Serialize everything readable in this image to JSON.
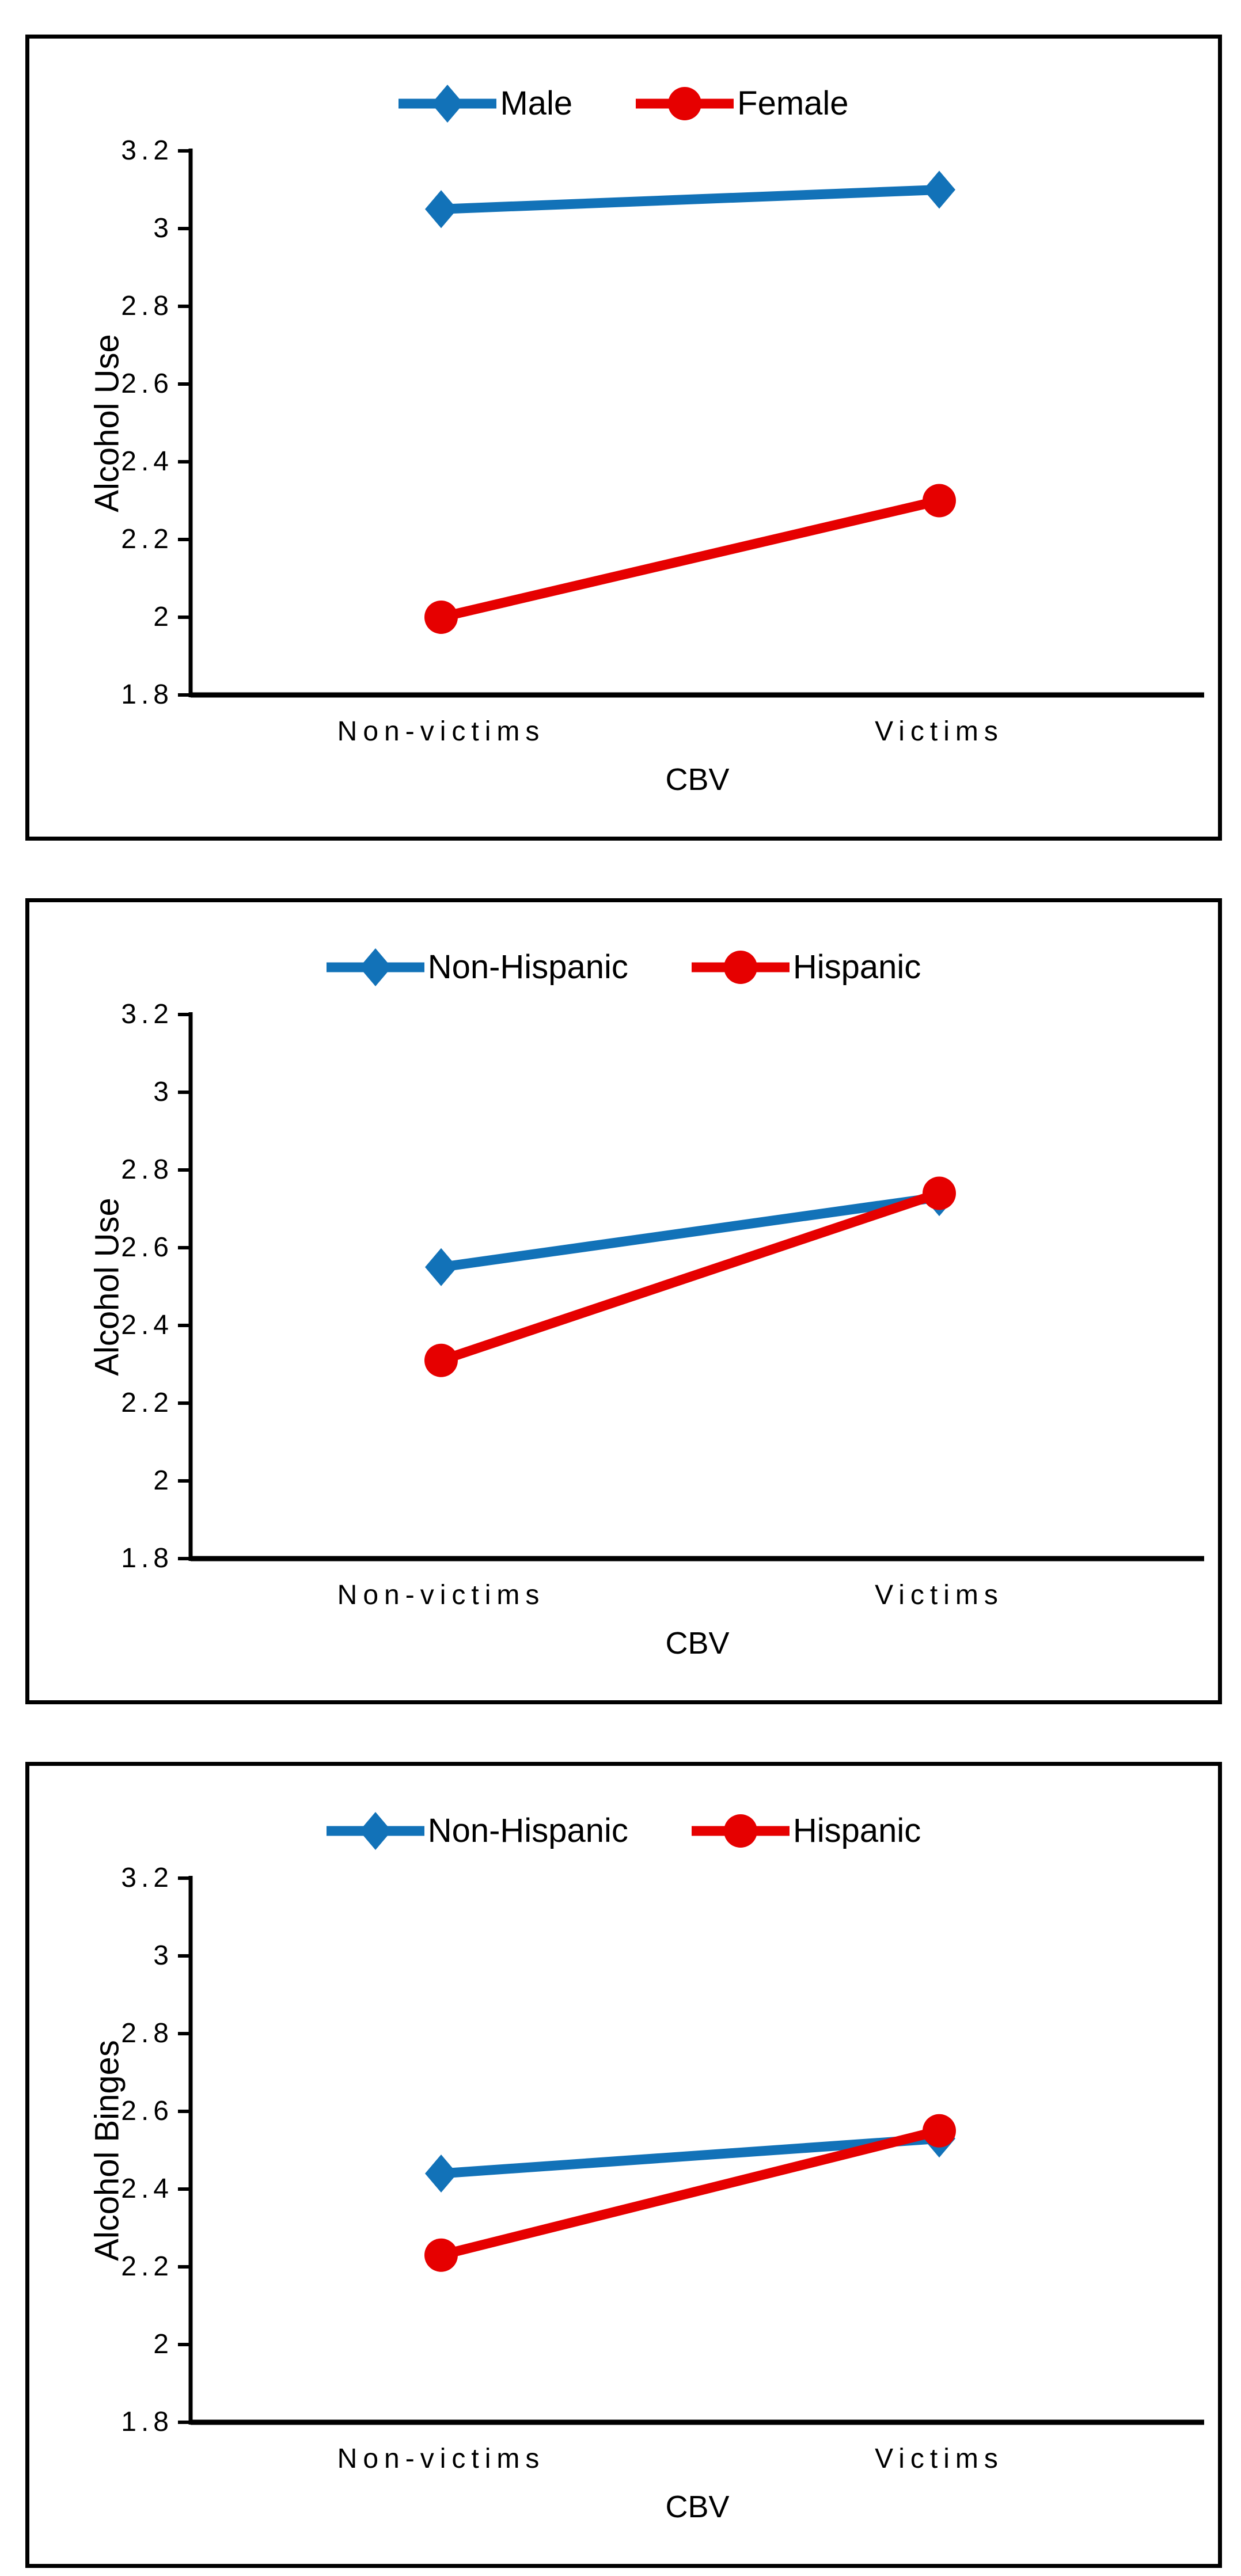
{
  "chart_data": [
    {
      "type": "line",
      "categories": [
        "Non-victims",
        "Victims"
      ],
      "xlabel": "CBV",
      "ylabel": "Alcohol Use",
      "ylim": [
        1.8,
        3.2
      ],
      "y_tick_labels": [
        "3.2",
        "3",
        "2.8",
        "2.6",
        "2.4",
        "2.2",
        "2",
        "1.8"
      ],
      "grid": false,
      "legend_position": "top",
      "series": [
        {
          "name": "Male",
          "color": "#1272B8",
          "marker": "diamond",
          "values": [
            3.05,
            3.1
          ]
        },
        {
          "name": "Female",
          "color": "#E60000",
          "marker": "circle",
          "values": [
            2.0,
            2.3
          ]
        }
      ]
    },
    {
      "type": "line",
      "categories": [
        "Non-victims",
        "Victims"
      ],
      "xlabel": "CBV",
      "ylabel": "Alcohol Use",
      "ylim": [
        1.8,
        3.2
      ],
      "y_tick_labels": [
        "3.2",
        "3",
        "2.8",
        "2.6",
        "2.4",
        "2.2",
        "2",
        "1.8"
      ],
      "grid": false,
      "legend_position": "top",
      "series": [
        {
          "name": "Non-Hispanic",
          "color": "#1272B8",
          "marker": "diamond",
          "values": [
            2.55,
            2.73
          ]
        },
        {
          "name": "Hispanic",
          "color": "#E60000",
          "marker": "circle",
          "values": [
            2.31,
            2.74
          ]
        }
      ]
    },
    {
      "type": "line",
      "categories": [
        "Non-victims",
        "Victims"
      ],
      "xlabel": "CBV",
      "ylabel": "Alcohol Binges",
      "ylim": [
        1.8,
        3.2
      ],
      "y_tick_labels": [
        "3.2",
        "3",
        "2.8",
        "2.6",
        "2.4",
        "2.2",
        "2",
        "1.8"
      ],
      "grid": false,
      "legend_position": "top",
      "series": [
        {
          "name": "Non-Hispanic",
          "color": "#1272B8",
          "marker": "diamond",
          "values": [
            2.44,
            2.53
          ]
        },
        {
          "name": "Hispanic",
          "color": "#E60000",
          "marker": "circle",
          "values": [
            2.23,
            2.55
          ]
        }
      ]
    }
  ]
}
